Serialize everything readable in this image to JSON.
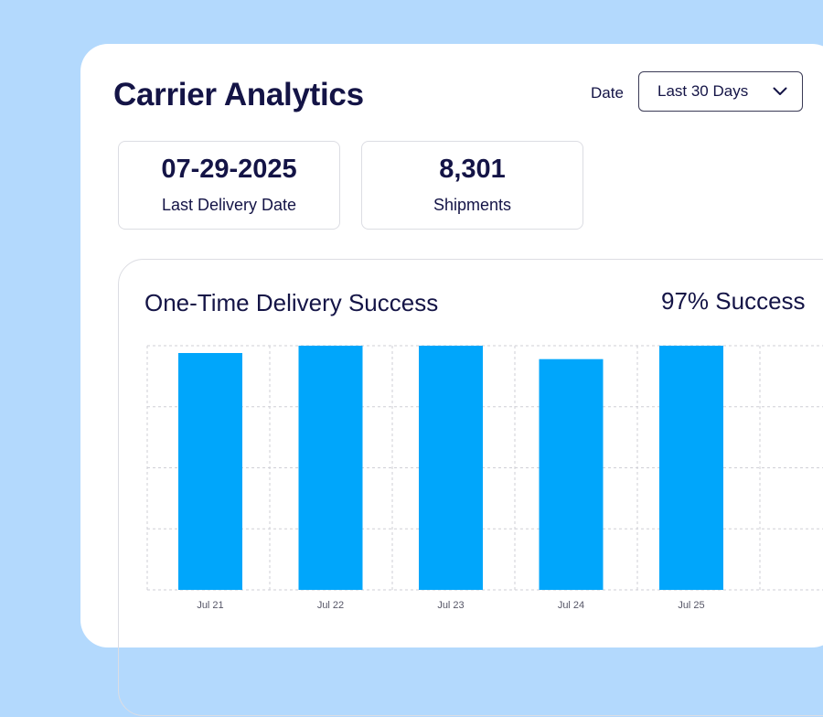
{
  "header": {
    "title": "Carrier Analytics",
    "date_label": "Date",
    "date_select": {
      "value": "Last 30 Days",
      "icon": "chevron-down-icon"
    }
  },
  "stats": [
    {
      "value": "07-29-2025",
      "label": "Last Delivery Date"
    },
    {
      "value": "8,301",
      "label": "Shipments"
    }
  ],
  "chart_card": {
    "title": "One-Time Delivery Success",
    "summary": "97% Success"
  },
  "colors": {
    "background": "#b3d9fd",
    "panel": "#ffffff",
    "bar": "#00a6fb",
    "text": "#141446",
    "grid": "#cfcfd6"
  },
  "chart_data": {
    "type": "bar",
    "categories": [
      "Jul 21",
      "Jul 22",
      "Jul 23",
      "Jul 24",
      "Jul 25"
    ],
    "values": [
      97,
      100,
      100,
      94.5,
      100
    ],
    "ylim": [
      0,
      100
    ],
    "grid": true,
    "gridlines_y": 4,
    "title": "One-Time Delivery Success",
    "xlabel": "",
    "ylabel": ""
  }
}
